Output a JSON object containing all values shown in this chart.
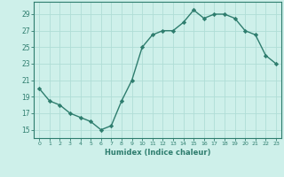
{
  "x": [
    0,
    1,
    2,
    3,
    4,
    5,
    6,
    7,
    8,
    9,
    10,
    11,
    12,
    13,
    14,
    15,
    16,
    17,
    18,
    19,
    20,
    21,
    22,
    23
  ],
  "y": [
    20.0,
    18.5,
    18.0,
    17.0,
    16.5,
    16.0,
    15.0,
    15.5,
    18.5,
    21.0,
    25.0,
    26.5,
    27.0,
    27.0,
    28.0,
    29.5,
    28.5,
    29.0,
    29.0,
    28.5,
    27.0,
    26.5,
    24.0,
    23.0
  ],
  "xlabel": "Humidex (Indice chaleur)",
  "xlim": [
    -0.5,
    23.5
  ],
  "ylim": [
    14.0,
    30.5
  ],
  "yticks": [
    15,
    17,
    19,
    21,
    23,
    25,
    27,
    29
  ],
  "xticks": [
    0,
    1,
    2,
    3,
    4,
    5,
    6,
    7,
    8,
    9,
    10,
    11,
    12,
    13,
    14,
    15,
    16,
    17,
    18,
    19,
    20,
    21,
    22,
    23
  ],
  "line_color": "#2e7d6e",
  "marker_color": "#2e7d6e",
  "bg_color": "#cef0ea",
  "grid_color": "#b0ddd6",
  "tick_color": "#2e7d6e",
  "label_color": "#2e7d6e",
  "axis_color": "#2e7d6e"
}
